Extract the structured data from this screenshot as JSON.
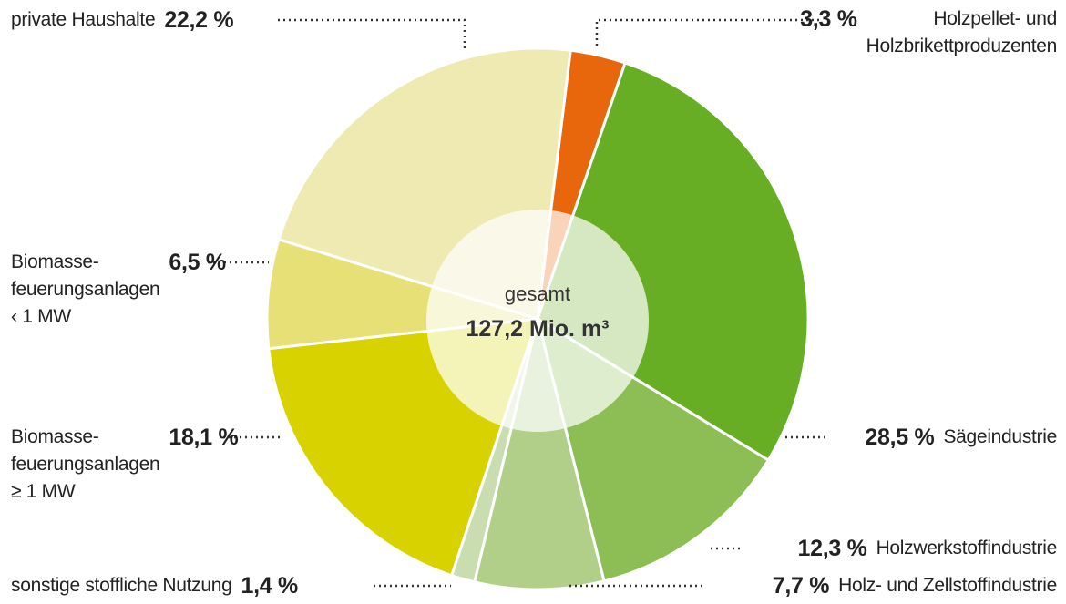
{
  "chart_data": {
    "type": "pie",
    "center_label": "gesamt",
    "total_label": "127,2 Mio. m³",
    "categories": [
      "Holzpellet- und\nHolzbrikettproduzenten",
      "Sägeindustrie",
      "Holzwerkstoffindustrie",
      "Holz- und Zellstoffindustrie",
      "sonstige stoffliche Nutzung",
      "Biomasse-\nfeuerungsanlagen\n≥ 1 MW",
      "Biomasse-\nfeuerungsanlagen\n‹ 1 MW",
      "private Haushalte"
    ],
    "values": [
      3.3,
      28.5,
      12.3,
      7.7,
      1.4,
      18.1,
      6.5,
      22.2
    ],
    "value_labels": [
      "3,3 %",
      "28,5 %",
      "12,3 %",
      "7,7 %",
      "1,4 %",
      "18,1 %",
      "6,5 %",
      "22,2 %"
    ],
    "colors": [
      "#e8670c",
      "#68ae24",
      "#8dbd55",
      "#b1cf88",
      "#c9ddb1",
      "#d8d300",
      "#e6e077",
      "#eeeab1"
    ]
  }
}
